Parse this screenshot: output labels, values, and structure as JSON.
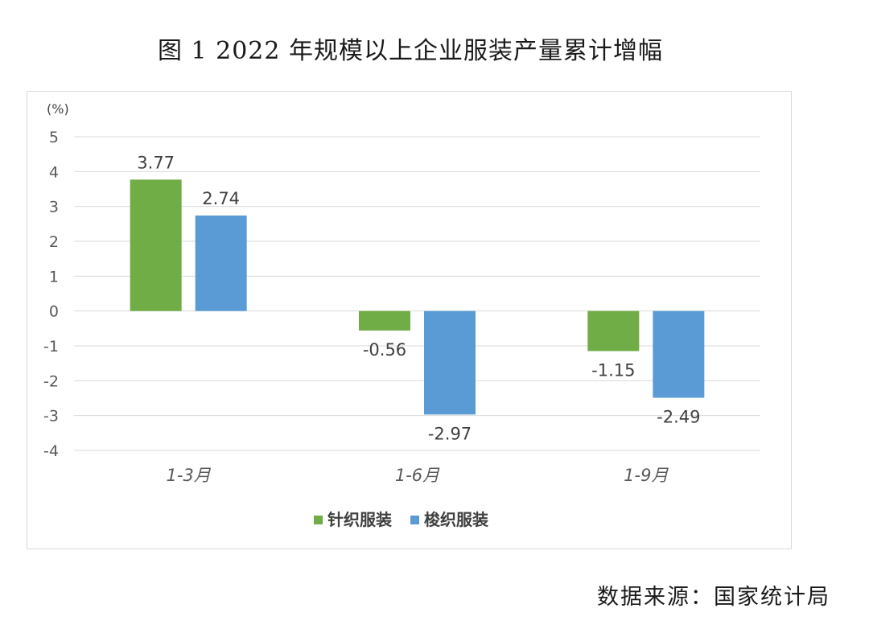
{
  "title": "图 1 2022 年规模以上企业服装产量累计增幅",
  "source": "数据来源：国家统计局",
  "colors": {
    "series1": "#70ad47",
    "series2": "#5b9bd5",
    "grid": "#d9d9d9"
  },
  "chart_data": {
    "type": "bar",
    "unit_label": "(%)",
    "categories": [
      "1-3月",
      "1-6月",
      "1-9月"
    ],
    "series": [
      {
        "name": "针织服装",
        "values": [
          3.77,
          -0.56,
          -1.15
        ],
        "labels": [
          "3.77",
          "-0.56",
          "-1.15"
        ]
      },
      {
        "name": "梭织服装",
        "values": [
          2.74,
          -2.97,
          -2.49
        ],
        "labels": [
          "2.74",
          "-2.97",
          "-2.49"
        ]
      }
    ],
    "ylim": [
      -4,
      5
    ],
    "yticks": [
      5,
      4,
      3,
      2,
      1,
      0,
      -1,
      -2,
      -3,
      -4
    ],
    "grid": true,
    "legend_position": "bottom"
  }
}
